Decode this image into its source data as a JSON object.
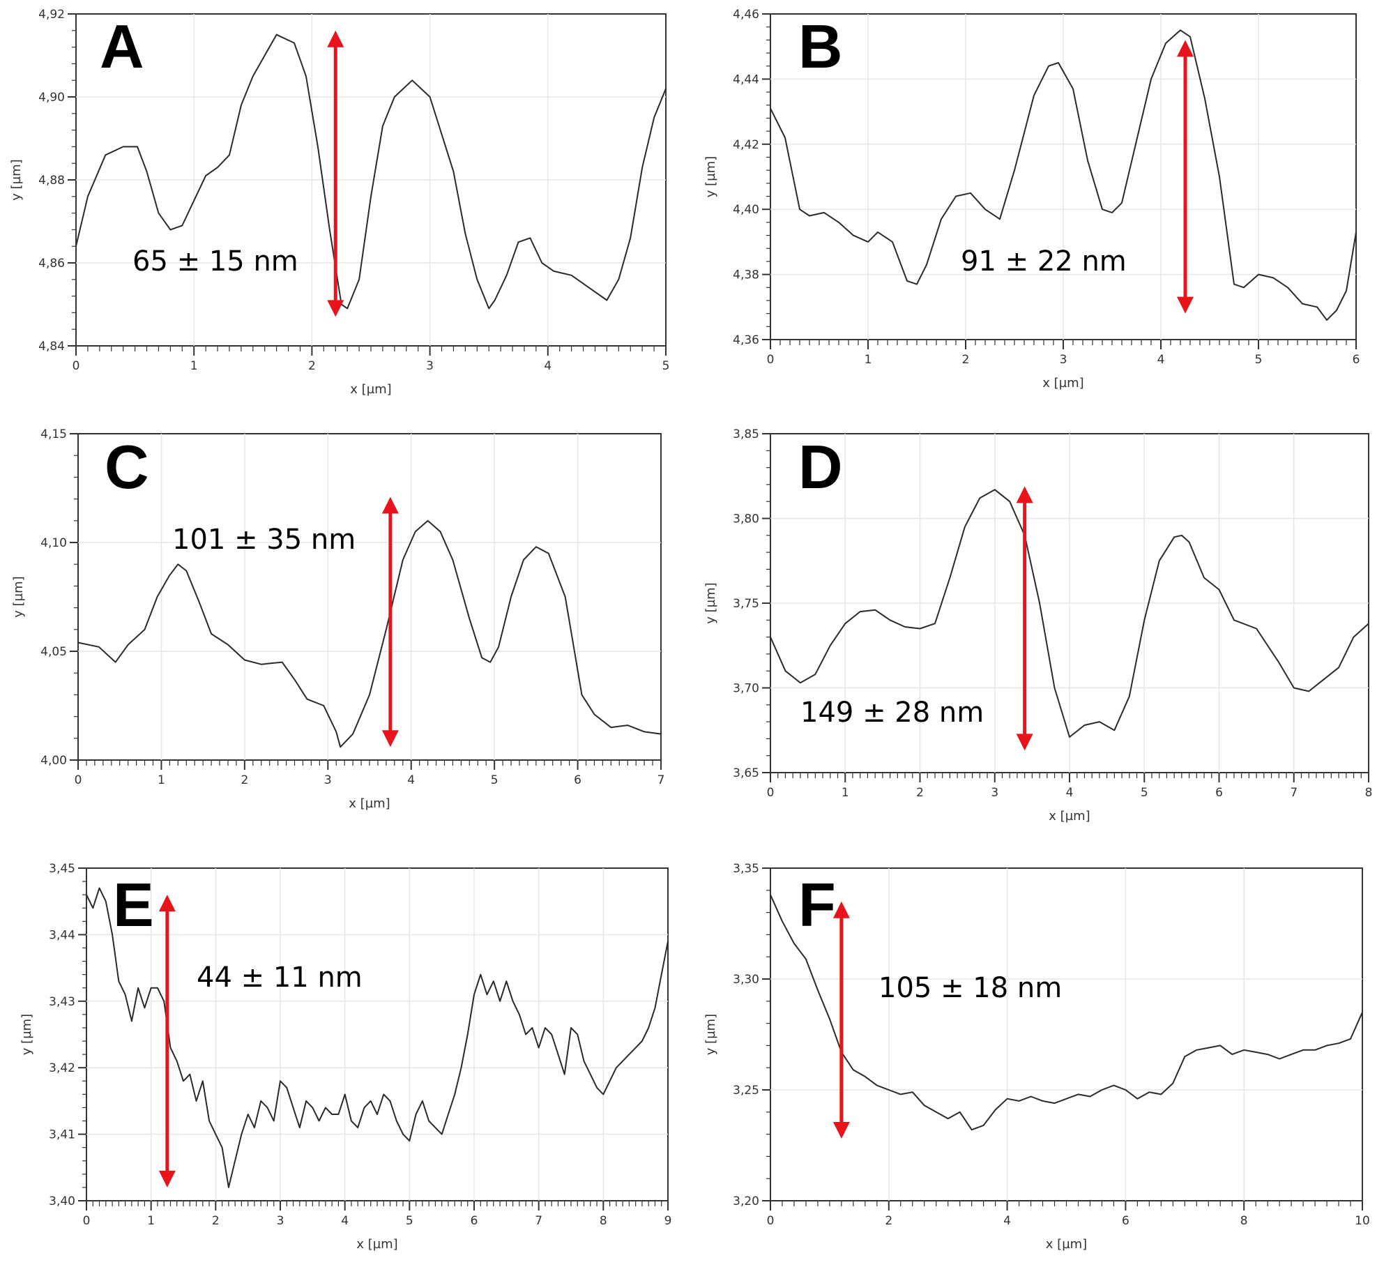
{
  "colors": {
    "profile": "#2a2a2a",
    "arrow": "#e8141b",
    "frame": "#333333",
    "grid": "#e6e6e6"
  },
  "chart_data": [
    {
      "type": "line",
      "panel": "A",
      "xlabel": "x [µm]",
      "ylabel": "y [µm]",
      "xlim": [
        0,
        5
      ],
      "ylim": [
        4.84,
        4.92
      ],
      "xticks": [
        0,
        1,
        2,
        3,
        4,
        5
      ],
      "yticks": [
        4.84,
        4.86,
        4.88,
        4.9,
        4.92
      ],
      "x_tick_labels": [
        "0",
        "1",
        "2",
        "3",
        "4",
        "5"
      ],
      "y_tick_labels": [
        "4,84",
        "4,86",
        "4,88",
        "4,90",
        "4,92"
      ],
      "annotation": "65 ± 15 nm",
      "arrow_x": 2.2,
      "arrow_y": [
        4.847,
        4.916
      ],
      "x": [
        0,
        0.1,
        0.25,
        0.4,
        0.52,
        0.6,
        0.7,
        0.8,
        0.9,
        1.0,
        1.1,
        1.2,
        1.3,
        1.4,
        1.5,
        1.6,
        1.7,
        1.85,
        1.95,
        2.05,
        2.15,
        2.25,
        2.3,
        2.4,
        2.5,
        2.6,
        2.7,
        2.85,
        3.0,
        3.1,
        3.2,
        3.3,
        3.4,
        3.5,
        3.55,
        3.65,
        3.75,
        3.85,
        3.95,
        4.05,
        4.2,
        4.35,
        4.5,
        4.6,
        4.7,
        4.8,
        4.9,
        5.0
      ],
      "y": [
        4.864,
        4.876,
        4.886,
        4.888,
        4.888,
        4.882,
        4.872,
        4.868,
        4.869,
        4.875,
        4.881,
        4.883,
        4.886,
        4.898,
        4.905,
        4.91,
        4.915,
        4.913,
        4.905,
        4.888,
        4.868,
        4.85,
        4.849,
        4.856,
        4.876,
        4.893,
        4.9,
        4.904,
        4.9,
        4.891,
        4.882,
        4.867,
        4.856,
        4.849,
        4.851,
        4.857,
        4.865,
        4.866,
        4.86,
        4.858,
        4.857,
        4.854,
        4.851,
        4.856,
        4.866,
        4.883,
        4.895,
        4.902
      ]
    },
    {
      "type": "line",
      "panel": "B",
      "xlabel": "x [µm]",
      "ylabel": "y [µm]",
      "xlim": [
        0,
        6
      ],
      "ylim": [
        4.36,
        4.46
      ],
      "xticks": [
        0,
        1,
        2,
        3,
        4,
        5,
        6
      ],
      "yticks": [
        4.36,
        4.38,
        4.4,
        4.42,
        4.44,
        4.46
      ],
      "x_tick_labels": [
        "0",
        "1",
        "2",
        "3",
        "4",
        "5",
        "6"
      ],
      "y_tick_labels": [
        "4,36",
        "4,38",
        "4,40",
        "4,42",
        "4,44",
        "4,46"
      ],
      "annotation": "91 ± 22 nm",
      "arrow_x": 4.25,
      "arrow_y": [
        4.368,
        4.452
      ],
      "x": [
        0,
        0.15,
        0.3,
        0.4,
        0.55,
        0.7,
        0.85,
        1.0,
        1.1,
        1.25,
        1.4,
        1.5,
        1.6,
        1.75,
        1.9,
        2.05,
        2.2,
        2.35,
        2.5,
        2.7,
        2.85,
        2.95,
        3.1,
        3.25,
        3.4,
        3.5,
        3.6,
        3.75,
        3.9,
        4.05,
        4.2,
        4.3,
        4.45,
        4.6,
        4.75,
        4.85,
        5.0,
        5.15,
        5.3,
        5.45,
        5.6,
        5.7,
        5.8,
        5.9,
        6.0
      ],
      "y": [
        4.431,
        4.422,
        4.4,
        4.398,
        4.399,
        4.396,
        4.392,
        4.39,
        4.393,
        4.39,
        4.378,
        4.377,
        4.383,
        4.397,
        4.404,
        4.405,
        4.4,
        4.397,
        4.412,
        4.435,
        4.444,
        4.445,
        4.437,
        4.415,
        4.4,
        4.399,
        4.402,
        4.421,
        4.44,
        4.451,
        4.455,
        4.453,
        4.434,
        4.41,
        4.377,
        4.376,
        4.38,
        4.379,
        4.376,
        4.371,
        4.37,
        4.366,
        4.369,
        4.375,
        4.393
      ]
    },
    {
      "type": "line",
      "panel": "C",
      "xlabel": "x [µm]",
      "ylabel": "y [µm]",
      "xlim": [
        0,
        7
      ],
      "ylim": [
        4.0,
        4.15
      ],
      "xticks": [
        0,
        1,
        2,
        3,
        4,
        5,
        6,
        7
      ],
      "yticks": [
        4.0,
        4.05,
        4.1,
        4.15
      ],
      "x_tick_labels": [
        "0",
        "1",
        "2",
        "3",
        "4",
        "5",
        "6",
        "7"
      ],
      "y_tick_labels": [
        "4,00",
        "4,05",
        "4,10",
        "4,15"
      ],
      "annotation": "101 ± 35 nm",
      "arrow_x": 3.75,
      "arrow_y": [
        4.006,
        4.121
      ],
      "x": [
        0,
        0.25,
        0.45,
        0.6,
        0.8,
        0.95,
        1.1,
        1.2,
        1.3,
        1.45,
        1.6,
        1.8,
        2.0,
        2.2,
        2.45,
        2.6,
        2.75,
        2.95,
        3.1,
        3.15,
        3.3,
        3.5,
        3.7,
        3.9,
        4.05,
        4.2,
        4.35,
        4.5,
        4.7,
        4.85,
        4.95,
        5.05,
        5.2,
        5.35,
        5.5,
        5.65,
        5.85,
        6.05,
        6.2,
        6.4,
        6.6,
        6.8,
        7.0
      ],
      "y": [
        4.054,
        4.052,
        4.045,
        4.053,
        4.06,
        4.075,
        4.085,
        4.09,
        4.087,
        4.073,
        4.058,
        4.053,
        4.046,
        4.044,
        4.045,
        4.037,
        4.028,
        4.025,
        4.013,
        4.006,
        4.012,
        4.03,
        4.06,
        4.092,
        4.105,
        4.11,
        4.105,
        4.092,
        4.065,
        4.047,
        4.045,
        4.052,
        4.075,
        4.092,
        4.098,
        4.095,
        4.075,
        4.03,
        4.021,
        4.015,
        4.016,
        4.013,
        4.012
      ]
    },
    {
      "type": "line",
      "panel": "D",
      "xlabel": "x [µm]",
      "ylabel": "y [µm]",
      "xlim": [
        0,
        8
      ],
      "ylim": [
        3.65,
        3.85
      ],
      "xticks": [
        0,
        1,
        2,
        3,
        4,
        5,
        6,
        7,
        8
      ],
      "yticks": [
        3.65,
        3.7,
        3.75,
        3.8,
        3.85
      ],
      "x_tick_labels": [
        "0",
        "1",
        "2",
        "3",
        "4",
        "5",
        "6",
        "7",
        "8"
      ],
      "y_tick_labels": [
        "3,65",
        "3,70",
        "3,75",
        "3,80",
        "3,85"
      ],
      "annotation": "149 ± 28 nm",
      "arrow_x": 3.4,
      "arrow_y": [
        3.663,
        3.819
      ],
      "x": [
        0,
        0.2,
        0.4,
        0.6,
        0.8,
        1.0,
        1.2,
        1.4,
        1.6,
        1.8,
        2.0,
        2.2,
        2.4,
        2.6,
        2.8,
        3.0,
        3.2,
        3.4,
        3.6,
        3.8,
        4.0,
        4.2,
        4.4,
        4.6,
        4.8,
        5.0,
        5.2,
        5.4,
        5.5,
        5.6,
        5.8,
        6.0,
        6.2,
        6.5,
        6.8,
        7.0,
        7.2,
        7.4,
        7.6,
        7.8,
        8.0
      ],
      "y": [
        3.73,
        3.71,
        3.703,
        3.708,
        3.725,
        3.738,
        3.745,
        3.746,
        3.74,
        3.736,
        3.735,
        3.738,
        3.765,
        3.795,
        3.812,
        3.817,
        3.81,
        3.79,
        3.75,
        3.7,
        3.671,
        3.678,
        3.68,
        3.675,
        3.695,
        3.74,
        3.775,
        3.789,
        3.79,
        3.786,
        3.765,
        3.758,
        3.74,
        3.735,
        3.715,
        3.7,
        3.698,
        3.705,
        3.712,
        3.73,
        3.738
      ]
    },
    {
      "type": "line",
      "panel": "E",
      "xlabel": "x [µm]",
      "ylabel": "y [µm]",
      "xlim": [
        0,
        9
      ],
      "ylim": [
        3.4,
        3.45
      ],
      "xticks": [
        0,
        1,
        2,
        3,
        4,
        5,
        6,
        7,
        8,
        9
      ],
      "yticks": [
        3.4,
        3.41,
        3.42,
        3.43,
        3.44,
        3.45
      ],
      "x_tick_labels": [
        "0",
        "1",
        "2",
        "3",
        "4",
        "5",
        "6",
        "7",
        "8",
        "9"
      ],
      "y_tick_labels": [
        "3,40",
        "3,41",
        "3,42",
        "3,43",
        "3,44",
        "3,45"
      ],
      "annotation": "44 ± 11 nm",
      "arrow_x": 1.25,
      "arrow_y": [
        3.402,
        3.446
      ],
      "x": [
        0,
        0.1,
        0.2,
        0.3,
        0.4,
        0.5,
        0.6,
        0.7,
        0.8,
        0.9,
        1.0,
        1.1,
        1.2,
        1.3,
        1.4,
        1.5,
        1.6,
        1.7,
        1.8,
        1.9,
        2.0,
        2.1,
        2.2,
        2.3,
        2.4,
        2.5,
        2.6,
        2.7,
        2.8,
        2.9,
        3.0,
        3.1,
        3.2,
        3.3,
        3.4,
        3.5,
        3.6,
        3.7,
        3.8,
        3.9,
        4.0,
        4.1,
        4.2,
        4.3,
        4.4,
        4.5,
        4.6,
        4.7,
        4.8,
        4.9,
        5.0,
        5.1,
        5.2,
        5.3,
        5.4,
        5.5,
        5.6,
        5.7,
        5.8,
        5.9,
        6.0,
        6.1,
        6.2,
        6.3,
        6.4,
        6.5,
        6.6,
        6.7,
        6.8,
        6.9,
        7.0,
        7.1,
        7.2,
        7.3,
        7.4,
        7.5,
        7.6,
        7.7,
        7.8,
        7.9,
        8.0,
        8.1,
        8.2,
        8.3,
        8.4,
        8.5,
        8.6,
        8.7,
        8.8,
        8.9,
        9.0
      ],
      "y": [
        3.446,
        3.444,
        3.447,
        3.445,
        3.44,
        3.433,
        3.431,
        3.427,
        3.432,
        3.429,
        3.432,
        3.432,
        3.43,
        3.423,
        3.421,
        3.418,
        3.419,
        3.415,
        3.418,
        3.412,
        3.41,
        3.408,
        3.402,
        3.406,
        3.41,
        3.413,
        3.411,
        3.415,
        3.414,
        3.412,
        3.418,
        3.417,
        3.414,
        3.411,
        3.415,
        3.414,
        3.412,
        3.414,
        3.413,
        3.413,
        3.416,
        3.412,
        3.411,
        3.414,
        3.415,
        3.413,
        3.416,
        3.415,
        3.412,
        3.41,
        3.409,
        3.413,
        3.415,
        3.412,
        3.411,
        3.41,
        3.413,
        3.416,
        3.42,
        3.425,
        3.431,
        3.434,
        3.431,
        3.433,
        3.43,
        3.433,
        3.43,
        3.428,
        3.425,
        3.426,
        3.423,
        3.426,
        3.425,
        3.422,
        3.419,
        3.426,
        3.425,
        3.421,
        3.419,
        3.417,
        3.416,
        3.418,
        3.42,
        3.421,
        3.422,
        3.423,
        3.424,
        3.426,
        3.429,
        3.434,
        3.439
      ]
    },
    {
      "type": "line",
      "panel": "F",
      "xlabel": "x [µm]",
      "ylabel": "y [µm]",
      "xlim": [
        0,
        10
      ],
      "ylim": [
        3.2,
        3.35
      ],
      "xticks": [
        0,
        2,
        4,
        6,
        8,
        10
      ],
      "yticks": [
        3.2,
        3.25,
        3.3,
        3.35
      ],
      "x_tick_labels": [
        "0",
        "2",
        "4",
        "6",
        "8",
        "10"
      ],
      "y_tick_labels": [
        "3,20",
        "3,25",
        "3,30",
        "3,35"
      ],
      "annotation": "105 ± 18 nm",
      "arrow_x": 1.2,
      "arrow_y": [
        3.228,
        3.335
      ],
      "x": [
        0,
        0.2,
        0.4,
        0.6,
        0.8,
        1.0,
        1.2,
        1.4,
        1.6,
        1.8,
        2.0,
        2.2,
        2.4,
        2.6,
        2.8,
        3.0,
        3.2,
        3.4,
        3.6,
        3.8,
        4.0,
        4.2,
        4.4,
        4.6,
        4.8,
        5.0,
        5.2,
        5.4,
        5.6,
        5.8,
        6.0,
        6.2,
        6.4,
        6.6,
        6.8,
        7.0,
        7.2,
        7.4,
        7.6,
        7.8,
        8.0,
        8.2,
        8.4,
        8.6,
        8.8,
        9.0,
        9.2,
        9.4,
        9.6,
        9.8,
        10.0
      ],
      "y": [
        3.338,
        3.326,
        3.316,
        3.309,
        3.295,
        3.282,
        3.267,
        3.259,
        3.256,
        3.252,
        3.25,
        3.248,
        3.249,
        3.243,
        3.24,
        3.237,
        3.24,
        3.232,
        3.234,
        3.241,
        3.246,
        3.245,
        3.247,
        3.245,
        3.244,
        3.246,
        3.248,
        3.247,
        3.25,
        3.252,
        3.25,
        3.246,
        3.249,
        3.248,
        3.253,
        3.265,
        3.268,
        3.269,
        3.27,
        3.266,
        3.268,
        3.267,
        3.266,
        3.264,
        3.266,
        3.268,
        3.268,
        3.27,
        3.271,
        3.273,
        3.285
      ]
    }
  ]
}
